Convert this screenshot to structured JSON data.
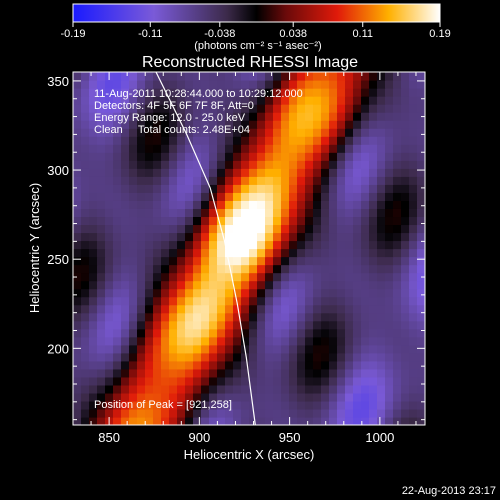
{
  "colorbar": {
    "ticks": [
      "-0.19",
      "-0.11",
      "-0.038",
      "0.038",
      "0.11",
      "0.19"
    ],
    "tick_values": [
      -0.19,
      -0.11,
      -0.038,
      0.038,
      0.11,
      0.19
    ],
    "range": [
      -0.19,
      0.19
    ],
    "unit_label": "(photons cm⁻² s⁻¹ asec⁻²)"
  },
  "chart_data": {
    "type": "heatmap",
    "title": "Reconstructed RHESSI Image",
    "xlabel": "Heliocentric X (arcsec)",
    "ylabel": "Heliocentric Y (arcsec)",
    "xlim": [
      830,
      1025
    ],
    "ylim": [
      157,
      355
    ],
    "x_ticks": [
      850,
      900,
      950,
      1000
    ],
    "y_ticks": [
      200,
      250,
      300,
      350
    ],
    "x_tick_labels": [
      "850",
      "900",
      "950",
      "1000"
    ],
    "y_tick_labels": [
      "200",
      "250",
      "300",
      "350"
    ],
    "colormap": "RHESSI blue-purple-red-yellow-white",
    "peak": [
      921,
      258
    ],
    "limb_arc": [
      [
        876,
        355
      ],
      [
        893,
        320
      ],
      [
        906,
        290
      ],
      [
        914,
        260
      ],
      [
        921,
        225
      ],
      [
        926,
        195
      ],
      [
        931,
        157
      ]
    ],
    "annotations": {
      "time": "11-Aug-2011 10:28:44.000 to 10:29:12.000",
      "detectors": "Detectors: 4F 5F 6F 7F 8F, Att=0",
      "energy": "Energy Range: 12.0 - 25.0 keV",
      "clean": "Clean     Total counts: 2.48E+04",
      "peak": "Position of Peak = [921,258]"
    }
  },
  "footer": {
    "date": "22-Aug-2013 23:17"
  }
}
